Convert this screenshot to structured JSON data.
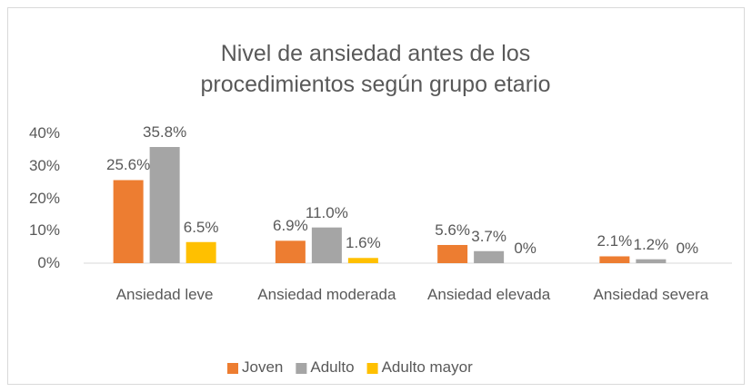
{
  "chart_data": {
    "type": "bar",
    "title": "Nivel de ansiedad antes de los procedimientos según grupo etario",
    "categories": [
      "Ansiedad leve",
      "Ansiedad moderada",
      "Ansiedad elevada",
      "Ansiedad severa"
    ],
    "series": [
      {
        "name": "Joven",
        "color": "#ed7d31",
        "values": [
          25.6,
          6.9,
          5.6,
          2.1
        ],
        "value_labels": [
          "25.6%",
          "6.9%",
          "5.6%",
          "2.1%"
        ]
      },
      {
        "name": "Adulto",
        "color": "#a5a5a5",
        "values": [
          35.8,
          11.0,
          3.7,
          1.2
        ],
        "value_labels": [
          "35.8%",
          "11.0%",
          "3.7%",
          "1.2%"
        ]
      },
      {
        "name": "Adulto mayor",
        "color": "#ffc000",
        "values": [
          6.5,
          1.6,
          0,
          0
        ],
        "value_labels": [
          "6.5%",
          "1.6%",
          "0%",
          "0%"
        ]
      }
    ],
    "ylim": [
      0,
      40
    ],
    "yticks": [
      {
        "value": 0,
        "label": "0%"
      },
      {
        "value": 10,
        "label": "10%"
      },
      {
        "value": 20,
        "label": "20%"
      },
      {
        "value": 30,
        "label": "30%"
      },
      {
        "value": 40,
        "label": "40%"
      }
    ],
    "grid": false,
    "legend": "bottom"
  }
}
